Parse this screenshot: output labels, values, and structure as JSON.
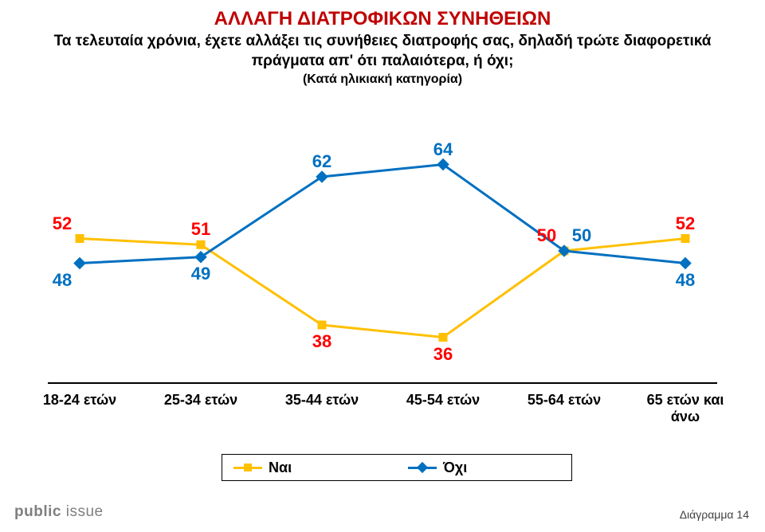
{
  "title": "ΑΛΛΑΓΗ ΔΙΑΤΡΟΦΙΚΩΝ ΣΥΝΗΘΕΙΩΝ",
  "subtitle": "Τα τελευταία χρόνια, έχετε αλλάξει τις συνήθειες διατροφής σας, δηλαδή τρώτε διαφορετικά πράγματα απ' ότι παλαιότερα, ή όχι;",
  "note": "(Κατά ηλικιακή κατηγορία)",
  "chart": {
    "type": "line",
    "categories": [
      "18-24 ετών",
      "25-34 ετών",
      "35-44 ετών",
      "45-54 ετών",
      "55-64 ετών",
      "65 ετών και άνω"
    ],
    "series": [
      {
        "name": "Ναι",
        "color": "#ffc000",
        "marker": "square",
        "values": [
          52,
          51,
          38,
          36,
          50,
          52
        ],
        "label_positions": [
          "above-left",
          "above",
          "below",
          "below",
          "above-left",
          "above"
        ],
        "label_color": "#ff0000"
      },
      {
        "name": "Όχι",
        "color": "#0070c0",
        "marker": "diamond",
        "values": [
          48,
          49,
          62,
          64,
          50,
          48
        ],
        "label_positions": [
          "below-left",
          "below",
          "above",
          "above",
          "above-right",
          "below"
        ],
        "label_color": "#0070c0"
      }
    ],
    "ymin": 30,
    "ymax": 70,
    "line_width": 3,
    "marker_size": 10,
    "label_fontsize": 22,
    "xlabel_fontsize": 18,
    "background": "#ffffff"
  },
  "legend": {
    "items": [
      {
        "label": "Ναι",
        "color": "#ffc000",
        "marker": "square"
      },
      {
        "label": "Όχι",
        "color": "#0070c0",
        "marker": "diamond"
      }
    ]
  },
  "footer": {
    "brand_bold": "public",
    "brand_rest": " issue",
    "diagram": "Διάγραμμα 14"
  }
}
